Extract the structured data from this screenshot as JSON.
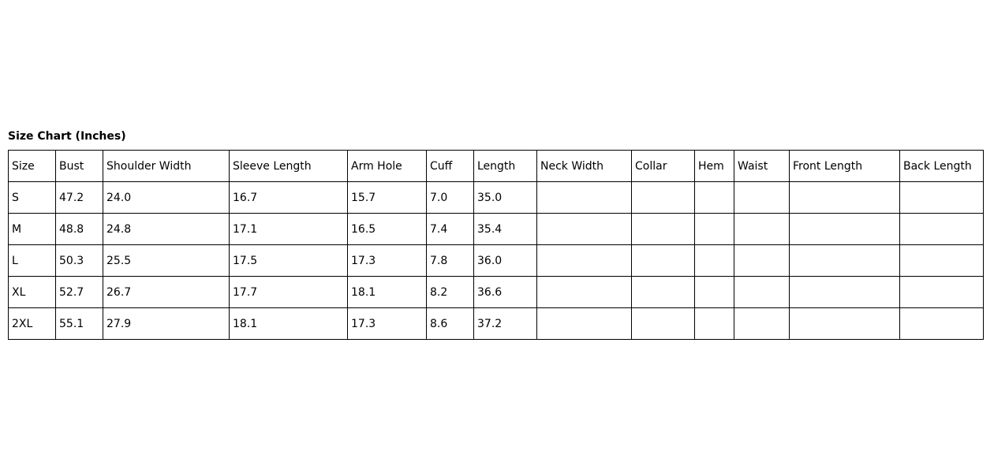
{
  "title": "Size Chart (Inches)",
  "headers": [
    "Size",
    "Bust",
    "Shoulder Width",
    "Sleeve Length",
    "Arm Hole",
    "Cuff",
    "Length",
    "Neck Width",
    "Collar",
    "Hem",
    "Waist",
    "Front Length",
    "Back Length"
  ],
  "rows": [
    [
      "S",
      "47.2",
      "24.0",
      "16.7",
      "15.7",
      "7.0",
      "35.0",
      "",
      "",
      "",
      "",
      "",
      ""
    ],
    [
      "M",
      "48.8",
      "24.8",
      "17.1",
      "16.5",
      "7.4",
      "35.4",
      "",
      "",
      "",
      "",
      "",
      ""
    ],
    [
      "L",
      "50.3",
      "25.5",
      "17.5",
      "17.3",
      "7.8",
      "36.0",
      "",
      "",
      "",
      "",
      "",
      ""
    ],
    [
      "XL",
      "52.7",
      "26.7",
      "17.7",
      "18.1",
      "8.2",
      "36.6",
      "",
      "",
      "",
      "",
      "",
      ""
    ],
    [
      "2XL",
      "55.1",
      "27.9",
      "18.1",
      "17.3",
      "8.6",
      "37.2",
      "",
      "",
      "",
      "",
      "",
      ""
    ]
  ]
}
